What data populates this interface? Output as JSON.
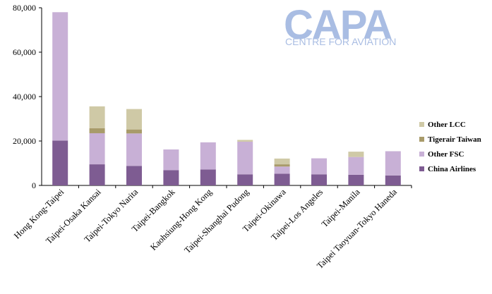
{
  "logo": {
    "text": "CAPA",
    "subtext": "CENTRE FOR AVIATION",
    "color": "#a9bde3"
  },
  "chart_data": {
    "type": "bar",
    "stacked": true,
    "title": "",
    "xlabel": "",
    "ylabel": "",
    "ylim": [
      0,
      80000
    ],
    "yticks": [
      0,
      20000,
      40000,
      60000,
      80000
    ],
    "ytick_labels": [
      "0",
      "20,000",
      "40,000",
      "60,000",
      "80,000"
    ],
    "grid": false,
    "legend_position": "right",
    "categories": [
      "Hong Kong-Taipei",
      "Taipei-Osaka Kansai",
      "Taipei-Tokyo Narita",
      "Taipei-Bangkok",
      "Kaohsiung-Hong Kong",
      "Taipei-Shanghai Pudong",
      "Taipei-Okinawa",
      "Taipei-Los Angeles",
      "Taipei-Manila",
      "Taipei Taoyuan-Tokyo Haneda"
    ],
    "series": [
      {
        "name": "China Airlines",
        "color": "#7e5c92",
        "values": [
          20200,
          9500,
          8800,
          6900,
          7200,
          5000,
          5300,
          5000,
          4800,
          4500
        ]
      },
      {
        "name": "Other FSC",
        "color": "#c8b0d6",
        "values": [
          57800,
          14000,
          14600,
          9300,
          12200,
          14700,
          3200,
          7200,
          8000,
          10900
        ]
      },
      {
        "name": "Tigerair Taiwan",
        "color": "#a89b6a",
        "values": [
          0,
          2300,
          1800,
          0,
          0,
          0,
          1000,
          0,
          0,
          0
        ]
      },
      {
        "name": "Other LCC",
        "color": "#cfc9a6",
        "values": [
          0,
          9800,
          9200,
          0,
          0,
          800,
          2600,
          0,
          2400,
          0
        ]
      }
    ],
    "legend_order": [
      "Other LCC",
      "Tigerair Taiwan",
      "Other FSC",
      "China Airlines"
    ]
  }
}
